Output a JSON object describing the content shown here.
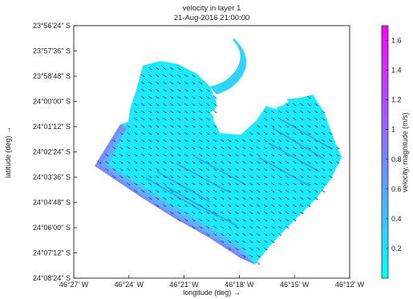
{
  "chart_data": {
    "type": "heatmap",
    "title": "velocity in layer 1",
    "subtitle": "21-Aug-2016 21:00:00",
    "xlabel": "longitude (deg) →",
    "ylabel": "latitude (deg) →",
    "x_ticks": [
      "46°27' W",
      "46°24' W",
      "46°21' W",
      "46°18' W",
      "46°15' W",
      "46°12' W"
    ],
    "y_ticks": [
      "23°56'24\" S",
      "23°57'36\" S",
      "23°58'48\" S",
      "24°00'00\" S",
      "24°01'12\" S",
      "24°02'24\" S",
      "24°03'36\" S",
      "24°04'48\" S",
      "24°06'00\" S",
      "24°07'12\" S",
      "24°08'24\" S"
    ],
    "colorbar": {
      "label": "velocity, magnitude (m/s)",
      "range": [
        0,
        1.7
      ],
      "ticks": [
        "0.2",
        "0.4",
        "0.6",
        "0.8",
        "1",
        "1.2",
        "1.4",
        "1.6"
      ],
      "tick_values": [
        0.2,
        0.4,
        0.6,
        0.8,
        1.0,
        1.2,
        1.4,
        1.6
      ],
      "colormap": [
        "#00ffff",
        "#ff00ff"
      ]
    },
    "grid": false
  }
}
